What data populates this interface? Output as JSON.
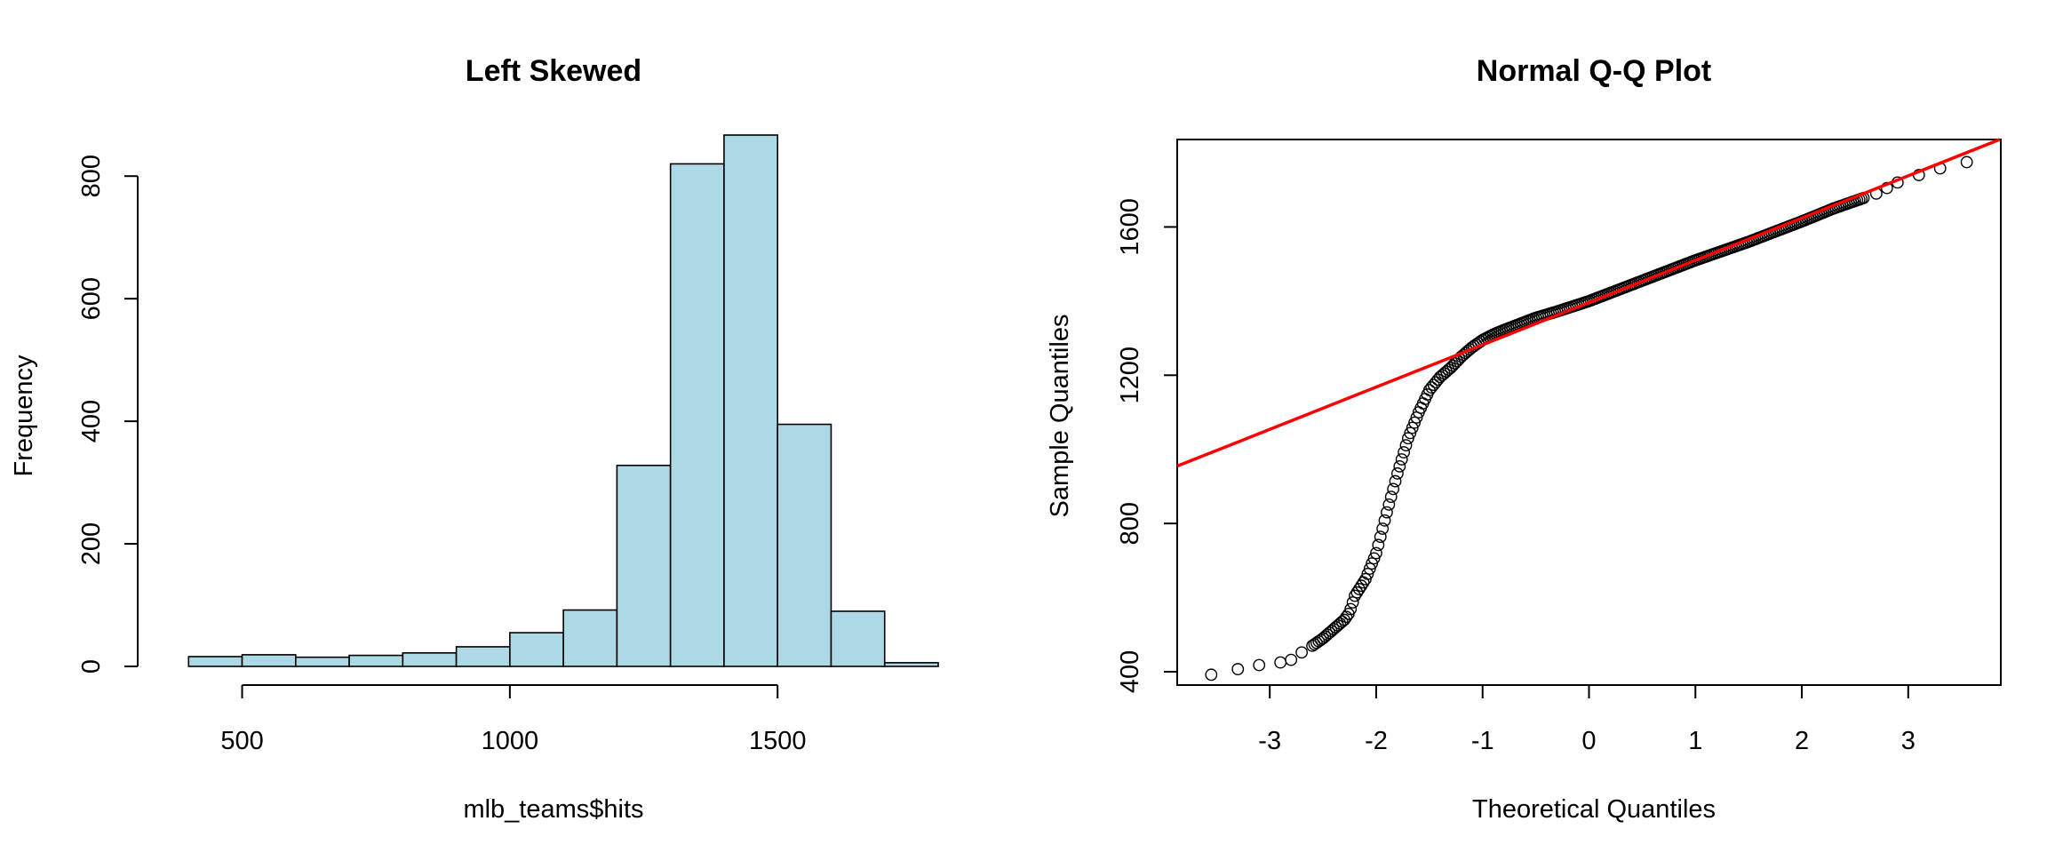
{
  "chart_data": [
    {
      "type": "bar",
      "title": "Left Skewed",
      "xlabel": "mlb_teams$hits",
      "ylabel": "Frequency",
      "bar_color": "#add8e6",
      "bin_width": 100,
      "bin_starts": [
        400,
        500,
        600,
        700,
        800,
        900,
        1000,
        1100,
        1200,
        1300,
        1400,
        1500,
        1600,
        1700
      ],
      "values": [
        16,
        19,
        15,
        18,
        22,
        32,
        55,
        92,
        328,
        820,
        867,
        395,
        90,
        6
      ],
      "xlim": [
        300,
        1800
      ],
      "ylim": [
        0,
        867
      ],
      "x_ticks": [
        500,
        1000,
        1500
      ],
      "y_ticks": [
        0,
        200,
        400,
        600,
        800
      ],
      "grid": false
    },
    {
      "type": "scatter",
      "title": "Normal Q-Q Plot",
      "xlabel": "Theoretical Quantiles",
      "ylabel": "Sample Quantiles",
      "xlim": [
        -3.87,
        3.87
      ],
      "ylim": [
        364,
        1836
      ],
      "x_ticks": [
        -3,
        -2,
        -1,
        0,
        1,
        2,
        3
      ],
      "y_ticks": [
        400,
        800,
        1200,
        1600
      ],
      "grid": false,
      "point_color": "#000000",
      "reference_line": {
        "intercept": 1396,
        "slope": 114,
        "color": "#ff0000"
      },
      "quantile_knots": {
        "x": [
          -3.55,
          -3.3,
          -3.1,
          -2.9,
          -2.8,
          -2.7,
          -2.6,
          -2.5,
          -2.4,
          -2.3,
          -2.25,
          -2.2,
          -2.1,
          -2.0,
          -1.9,
          -1.8,
          -1.7,
          -1.6,
          -1.5,
          -1.4,
          -1.3,
          -1.2,
          -1.1,
          -1.0,
          -0.9,
          -0.8,
          -0.7,
          -0.5,
          -0.3,
          0.0,
          0.5,
          1.0,
          1.5,
          2.0,
          2.3,
          2.5,
          2.7,
          2.8,
          2.9,
          3.1,
          3.3,
          3.55
        ],
        "y": [
          392,
          407,
          418,
          425,
          432,
          452,
          470,
          490,
          515,
          540,
          560,
          605,
          650,
          720,
          830,
          935,
          1030,
          1100,
          1160,
          1195,
          1220,
          1250,
          1275,
          1295,
          1310,
          1322,
          1333,
          1355,
          1372,
          1400,
          1455,
          1510,
          1560,
          1615,
          1650,
          1670,
          1690,
          1705,
          1720,
          1740,
          1758,
          1775
        ]
      }
    }
  ]
}
